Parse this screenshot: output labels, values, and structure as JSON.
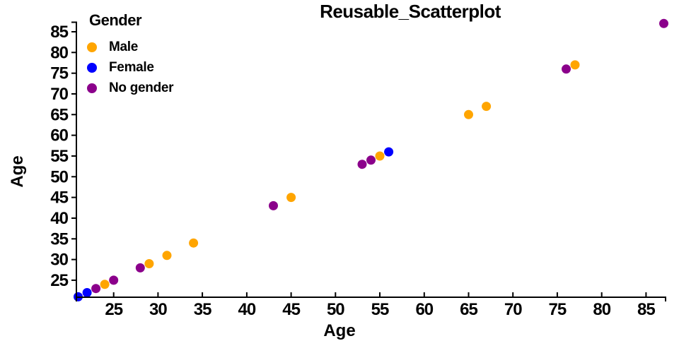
{
  "title": "Reusable_Scatterplot",
  "legend": {
    "title": "Gender",
    "items": [
      {
        "label": "Male",
        "color": "#FFA500"
      },
      {
        "label": "Female",
        "color": "#0000FF"
      },
      {
        "label": "No gender",
        "color": "#8B008B"
      }
    ]
  },
  "chart_data": {
    "type": "scatter",
    "title": "Reusable_Scatterplot",
    "xlabel": "Age",
    "ylabel": "Age",
    "xlim": [
      20.8,
      87.2
    ],
    "ylim": [
      20.9,
      87.3
    ],
    "x_ticks": [
      25,
      30,
      35,
      40,
      45,
      50,
      55,
      60,
      65,
      70,
      75,
      80,
      85
    ],
    "y_ticks": [
      25,
      30,
      35,
      40,
      45,
      50,
      55,
      60,
      65,
      70,
      75,
      80,
      85
    ],
    "grid": false,
    "legend_position": "top-left",
    "point_radius": 6.5,
    "series": [
      {
        "name": "Male",
        "color": "#FFA500",
        "points": [
          [
            24,
            24
          ],
          [
            29,
            29
          ],
          [
            31,
            31
          ],
          [
            34,
            34
          ],
          [
            45,
            45
          ],
          [
            55,
            55
          ],
          [
            65,
            65
          ],
          [
            67,
            67
          ],
          [
            77,
            77
          ]
        ]
      },
      {
        "name": "Female",
        "color": "#0000FF",
        "points": [
          [
            21,
            21
          ],
          [
            22,
            22
          ],
          [
            56,
            56
          ]
        ]
      },
      {
        "name": "No gender",
        "color": "#8B008B",
        "points": [
          [
            23,
            23
          ],
          [
            25,
            25
          ],
          [
            28,
            28
          ],
          [
            43,
            43
          ],
          [
            53,
            53
          ],
          [
            54,
            54
          ],
          [
            76,
            76
          ],
          [
            87,
            87
          ]
        ]
      }
    ]
  }
}
